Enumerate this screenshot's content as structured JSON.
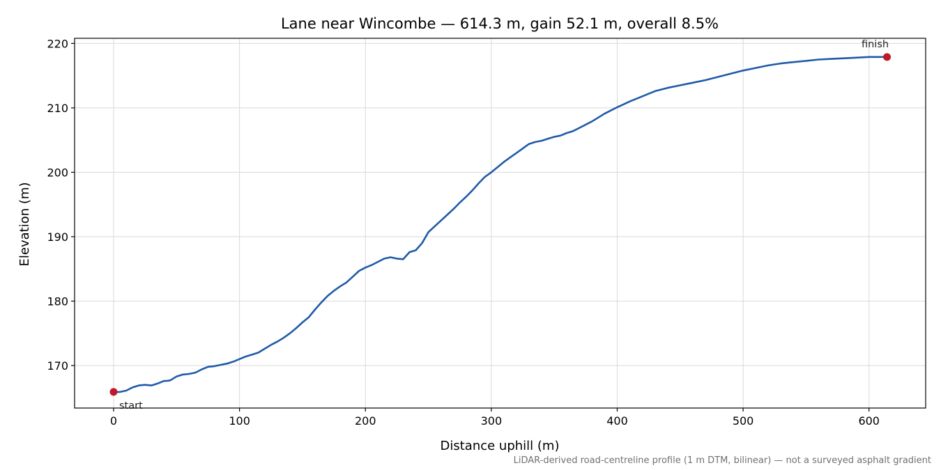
{
  "chart_data": {
    "type": "line",
    "title": "Lane near Wincombe — 614.3 m, gain 52.1 m, overall 8.5%",
    "xlabel": "Distance uphill (m)",
    "ylabel": "Elevation (m)",
    "xlim": [
      -31,
      645
    ],
    "ylim": [
      163.4,
      220.8
    ],
    "xticks": [
      0,
      100,
      200,
      300,
      400,
      500,
      600
    ],
    "yticks": [
      170,
      180,
      190,
      200,
      210,
      220
    ],
    "grid": true,
    "footnote": "LiDAR-derived road-centreline profile (1 m DTM, bilinear) — not a surveyed asphalt gradient",
    "colors": {
      "line": "#1f5aa8",
      "marker": "#c0182a"
    },
    "series": [
      {
        "x": [
          0,
          5,
          10,
          15,
          20,
          25,
          30,
          35,
          40,
          42,
          45,
          50,
          55,
          60,
          65,
          70,
          75,
          80,
          85,
          90,
          95,
          100,
          105,
          110,
          115,
          120,
          125,
          130,
          135,
          140,
          145,
          150,
          155,
          160,
          165,
          170,
          175,
          180,
          185,
          190,
          195,
          200,
          205,
          210,
          215,
          220,
          225,
          230,
          235,
          240,
          245,
          250,
          255,
          260,
          265,
          270,
          275,
          280,
          285,
          290,
          295,
          300,
          305,
          310,
          315,
          320,
          325,
          330,
          335,
          340,
          345,
          350,
          355,
          360,
          365,
          370,
          380,
          390,
          400,
          410,
          420,
          430,
          440,
          450,
          460,
          470,
          480,
          490,
          500,
          510,
          520,
          530,
          540,
          550,
          560,
          570,
          580,
          590,
          600,
          614.3
        ],
        "y": [
          165.9,
          165.9,
          166.1,
          166.6,
          166.9,
          167.0,
          166.9,
          167.2,
          167.6,
          167.6,
          167.7,
          168.3,
          168.6,
          168.7,
          168.9,
          169.4,
          169.8,
          169.9,
          170.1,
          170.3,
          170.6,
          171.0,
          171.4,
          171.7,
          172.0,
          172.6,
          173.2,
          173.7,
          174.3,
          175.0,
          175.8,
          176.7,
          177.5,
          178.7,
          179.8,
          180.8,
          181.6,
          182.3,
          182.9,
          183.8,
          184.7,
          185.2,
          185.6,
          186.1,
          186.6,
          186.8,
          186.6,
          186.5,
          187.6,
          187.9,
          189.0,
          190.7,
          191.6,
          192.5,
          193.4,
          194.3,
          195.3,
          196.2,
          197.2,
          198.3,
          199.3,
          200.0,
          200.8,
          201.6,
          202.3,
          203.0,
          203.7,
          204.4,
          204.7,
          204.9,
          205.2,
          205.5,
          205.7,
          206.1,
          206.4,
          206.9,
          207.9,
          209.1,
          210.1,
          211.0,
          211.8,
          212.6,
          213.1,
          213.5,
          213.9,
          214.3,
          214.8,
          215.3,
          215.8,
          216.2,
          216.6,
          216.9,
          217.1,
          217.3,
          217.5,
          217.6,
          217.7,
          217.8,
          217.9,
          217.9
        ]
      }
    ],
    "annotations": [
      {
        "label": "start",
        "x": 0,
        "y": 165.9
      },
      {
        "label": "finish",
        "x": 614.3,
        "y": 217.9
      }
    ]
  }
}
